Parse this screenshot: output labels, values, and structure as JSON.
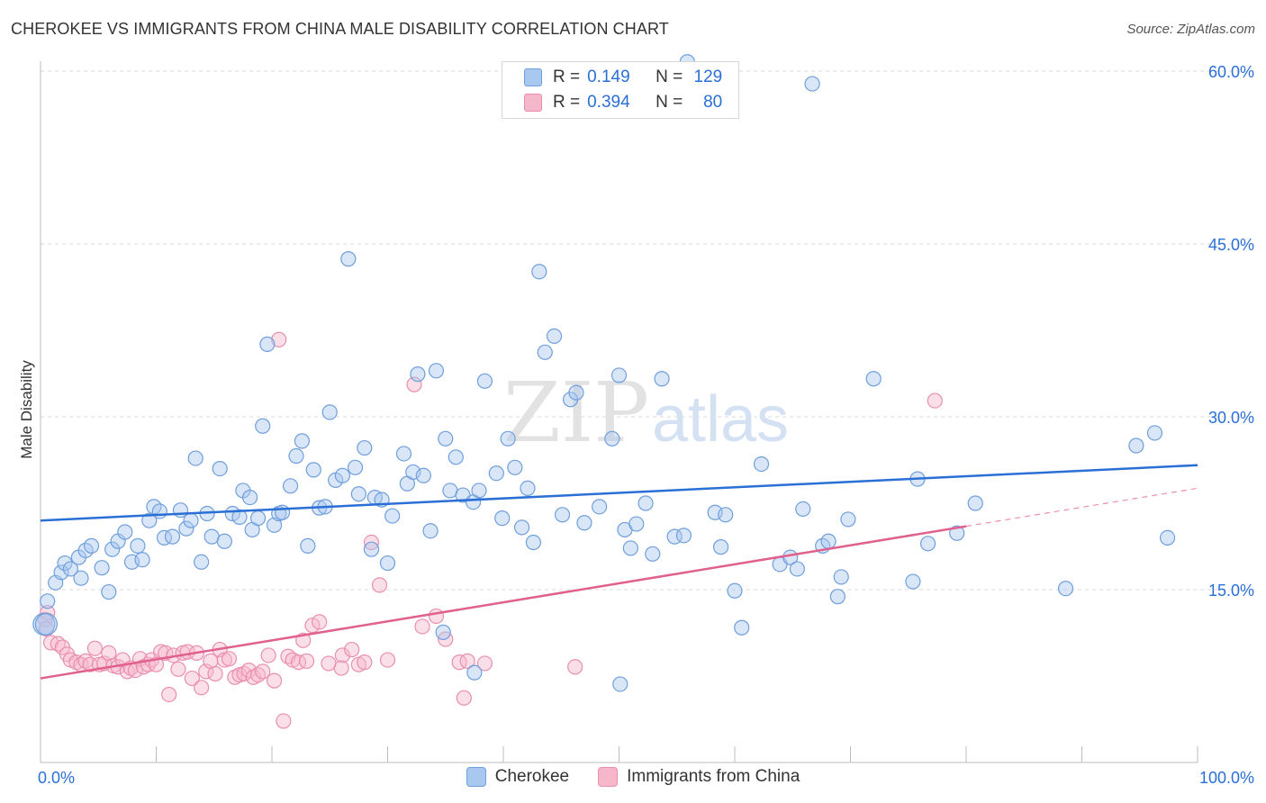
{
  "title": "CHEROKEE VS IMMIGRANTS FROM CHINA MALE DISABILITY CORRELATION CHART",
  "source": "Source: ZipAtlas.com",
  "watermark": {
    "zip": "ZIP",
    "atlas": "atlas"
  },
  "colors": {
    "blue": "#2a6fd6",
    "blue_fill": "#a9c8f0",
    "blue_stroke": "#6f9fdc",
    "pink": "#e0608e",
    "pink_fill": "#f6b7cb",
    "pink_stroke": "#ea8eaf",
    "grid": "#d9d9d9",
    "tick_label": "#2a6fd6"
  },
  "legend": {
    "rows": [
      {
        "r_label": "R =",
        "r_value": "0.149",
        "n_label": "N =",
        "n_value": "129"
      },
      {
        "r_label": "R =",
        "r_value": "0.394",
        "n_label": "N =",
        "n_value": "80"
      }
    ]
  },
  "bottom_legend": [
    "Cherokee",
    "Immigrants from China"
  ],
  "chart_data": {
    "type": "scatter",
    "title": "CHEROKEE VS IMMIGRANTS FROM CHINA MALE DISABILITY CORRELATION CHART",
    "xlabel": "",
    "ylabel": "Male Disability",
    "xlim": [
      0,
      100
    ],
    "ylim": [
      0,
      60
    ],
    "x_tick_labels": [
      "0.0%",
      "100.0%"
    ],
    "y_ticks": [
      15,
      30,
      45,
      60
    ],
    "y_tick_labels": [
      "15.0%",
      "30.0%",
      "45.0%",
      "60.0%"
    ],
    "grid": "horizontal dashed",
    "legend_position": "top-center",
    "series": [
      {
        "name": "Cherokee",
        "r": 0.149,
        "n": 129,
        "trend": {
          "x": [
            0,
            100
          ],
          "y": [
            21.0,
            25.8
          ]
        },
        "points": [
          [
            0.3,
            12.0
          ],
          [
            0.5,
            12.0
          ],
          [
            0.6,
            14.0
          ],
          [
            1.3,
            15.6
          ],
          [
            1.8,
            16.5
          ],
          [
            2.1,
            17.3
          ],
          [
            2.6,
            16.8
          ],
          [
            3.3,
            17.8
          ],
          [
            3.5,
            16.0
          ],
          [
            3.9,
            18.4
          ],
          [
            4.4,
            18.8
          ],
          [
            5.3,
            16.9
          ],
          [
            5.9,
            14.8
          ],
          [
            6.2,
            18.5
          ],
          [
            6.7,
            19.2
          ],
          [
            7.3,
            20.0
          ],
          [
            7.9,
            17.4
          ],
          [
            8.4,
            18.8
          ],
          [
            8.8,
            17.6
          ],
          [
            9.4,
            21.0
          ],
          [
            9.8,
            22.2
          ],
          [
            10.3,
            21.8
          ],
          [
            10.7,
            19.5
          ],
          [
            11.4,
            19.6
          ],
          [
            12.1,
            21.9
          ],
          [
            12.6,
            20.3
          ],
          [
            13.0,
            21.0
          ],
          [
            13.4,
            26.4
          ],
          [
            13.9,
            17.4
          ],
          [
            14.4,
            21.6
          ],
          [
            14.8,
            19.6
          ],
          [
            15.5,
            25.5
          ],
          [
            15.9,
            19.2
          ],
          [
            16.6,
            21.6
          ],
          [
            17.2,
            21.3
          ],
          [
            17.5,
            23.6
          ],
          [
            18.1,
            23.0
          ],
          [
            18.3,
            20.2
          ],
          [
            18.8,
            21.2
          ],
          [
            19.2,
            29.2
          ],
          [
            19.6,
            36.3
          ],
          [
            20.2,
            20.6
          ],
          [
            20.6,
            21.6
          ],
          [
            20.9,
            21.7
          ],
          [
            21.6,
            24.0
          ],
          [
            22.1,
            26.6
          ],
          [
            22.6,
            27.9
          ],
          [
            23.1,
            18.8
          ],
          [
            23.6,
            25.4
          ],
          [
            24.1,
            22.1
          ],
          [
            24.6,
            22.2
          ],
          [
            25.0,
            30.4
          ],
          [
            25.5,
            24.5
          ],
          [
            26.1,
            24.9
          ],
          [
            26.6,
            43.7
          ],
          [
            27.2,
            25.6
          ],
          [
            27.5,
            23.3
          ],
          [
            28.0,
            27.3
          ],
          [
            28.6,
            18.5
          ],
          [
            28.9,
            23.0
          ],
          [
            29.5,
            22.8
          ],
          [
            30.0,
            17.3
          ],
          [
            30.4,
            21.4
          ],
          [
            31.4,
            26.8
          ],
          [
            31.7,
            24.2
          ],
          [
            32.2,
            25.2
          ],
          [
            32.6,
            33.7
          ],
          [
            33.1,
            24.9
          ],
          [
            33.7,
            20.1
          ],
          [
            34.2,
            34.0
          ],
          [
            35.0,
            28.1
          ],
          [
            35.4,
            23.6
          ],
          [
            35.9,
            26.5
          ],
          [
            36.5,
            23.2
          ],
          [
            37.4,
            22.6
          ],
          [
            37.9,
            23.6
          ],
          [
            38.4,
            33.1
          ],
          [
            39.4,
            25.1
          ],
          [
            39.9,
            21.2
          ],
          [
            40.4,
            28.1
          ],
          [
            41.0,
            25.6
          ],
          [
            41.6,
            20.4
          ],
          [
            42.1,
            23.8
          ],
          [
            42.6,
            19.1
          ],
          [
            43.1,
            42.6
          ],
          [
            43.6,
            35.6
          ],
          [
            44.4,
            37.0
          ],
          [
            45.1,
            21.5
          ],
          [
            45.8,
            31.5
          ],
          [
            46.3,
            32.1
          ],
          [
            47.0,
            20.8
          ],
          [
            48.3,
            22.2
          ],
          [
            49.4,
            28.1
          ],
          [
            50.0,
            33.6
          ],
          [
            50.5,
            20.2
          ],
          [
            51.0,
            18.6
          ],
          [
            51.5,
            20.7
          ],
          [
            52.3,
            22.5
          ],
          [
            52.9,
            18.1
          ],
          [
            53.7,
            33.3
          ],
          [
            54.8,
            19.6
          ],
          [
            55.6,
            19.7
          ],
          [
            55.9,
            60.8
          ],
          [
            58.3,
            21.7
          ],
          [
            58.8,
            18.7
          ],
          [
            59.2,
            21.5
          ],
          [
            60.0,
            14.9
          ],
          [
            60.6,
            11.7
          ],
          [
            62.3,
            25.9
          ],
          [
            63.9,
            17.2
          ],
          [
            64.8,
            17.8
          ],
          [
            65.4,
            16.8
          ],
          [
            65.9,
            22.0
          ],
          [
            66.7,
            58.9
          ],
          [
            67.6,
            18.8
          ],
          [
            68.1,
            19.2
          ],
          [
            68.9,
            14.4
          ],
          [
            69.2,
            16.1
          ],
          [
            69.8,
            21.1
          ],
          [
            72.0,
            33.3
          ],
          [
            75.4,
            15.7
          ],
          [
            75.8,
            24.6
          ],
          [
            76.7,
            19.0
          ],
          [
            79.2,
            19.9
          ],
          [
            80.8,
            22.5
          ],
          [
            88.6,
            15.1
          ],
          [
            94.7,
            27.5
          ],
          [
            96.3,
            28.6
          ],
          [
            97.4,
            19.5
          ],
          [
            37.5,
            7.8
          ],
          [
            50.1,
            6.8
          ],
          [
            34.8,
            11.3
          ]
        ]
      },
      {
        "name": "Immigrants from China",
        "r": 0.394,
        "n": 80,
        "trend": {
          "x": [
            0,
            80
          ],
          "y": [
            7.3,
            20.5
          ]
        },
        "trend_dashed": {
          "x": [
            80,
            100
          ],
          "y": [
            20.5,
            23.8
          ]
        },
        "points": [
          [
            0.4,
            12.4
          ],
          [
            0.5,
            11.6
          ],
          [
            0.6,
            13.0
          ],
          [
            0.9,
            10.4
          ],
          [
            1.5,
            10.3
          ],
          [
            1.9,
            10.0
          ],
          [
            2.3,
            9.4
          ],
          [
            2.6,
            8.9
          ],
          [
            3.1,
            8.7
          ],
          [
            3.5,
            8.5
          ],
          [
            3.9,
            8.8
          ],
          [
            4.3,
            8.5
          ],
          [
            4.7,
            9.9
          ],
          [
            5.1,
            8.5
          ],
          [
            5.5,
            8.6
          ],
          [
            5.9,
            9.5
          ],
          [
            6.3,
            8.4
          ],
          [
            6.7,
            8.3
          ],
          [
            7.1,
            8.9
          ],
          [
            7.5,
            7.9
          ],
          [
            7.8,
            8.2
          ],
          [
            8.2,
            8.0
          ],
          [
            8.6,
            9.0
          ],
          [
            8.9,
            8.3
          ],
          [
            9.3,
            8.5
          ],
          [
            9.6,
            8.9
          ],
          [
            10.0,
            8.5
          ],
          [
            10.4,
            9.6
          ],
          [
            10.8,
            9.5
          ],
          [
            11.1,
            5.9
          ],
          [
            11.5,
            9.3
          ],
          [
            11.9,
            8.1
          ],
          [
            12.3,
            9.5
          ],
          [
            12.7,
            9.6
          ],
          [
            13.1,
            7.3
          ],
          [
            13.5,
            9.5
          ],
          [
            13.9,
            6.5
          ],
          [
            14.3,
            7.9
          ],
          [
            14.7,
            8.8
          ],
          [
            15.1,
            7.7
          ],
          [
            15.5,
            9.8
          ],
          [
            15.9,
            8.9
          ],
          [
            16.3,
            9.0
          ],
          [
            16.8,
            7.4
          ],
          [
            17.2,
            7.6
          ],
          [
            17.6,
            7.7
          ],
          [
            18.0,
            8.0
          ],
          [
            18.4,
            7.4
          ],
          [
            18.8,
            7.6
          ],
          [
            19.2,
            7.9
          ],
          [
            19.7,
            9.3
          ],
          [
            20.6,
            36.7
          ],
          [
            21.0,
            3.6
          ],
          [
            21.4,
            9.2
          ],
          [
            21.8,
            8.9
          ],
          [
            22.3,
            8.7
          ],
          [
            22.7,
            10.6
          ],
          [
            23.0,
            8.8
          ],
          [
            23.5,
            11.9
          ],
          [
            24.1,
            12.2
          ],
          [
            26.1,
            9.3
          ],
          [
            26.9,
            9.8
          ],
          [
            28.6,
            19.1
          ],
          [
            29.3,
            15.4
          ],
          [
            30.0,
            8.9
          ],
          [
            32.3,
            32.8
          ],
          [
            33.0,
            11.8
          ],
          [
            34.2,
            12.7
          ],
          [
            35.0,
            10.7
          ],
          [
            36.2,
            8.7
          ],
          [
            36.6,
            5.6
          ],
          [
            36.9,
            8.8
          ],
          [
            38.4,
            8.6
          ],
          [
            46.2,
            8.3
          ],
          [
            77.3,
            31.4
          ],
          [
            26.0,
            8.2
          ],
          [
            27.5,
            8.5
          ],
          [
            28.0,
            8.7
          ],
          [
            24.9,
            8.6
          ],
          [
            20.2,
            7.1
          ]
        ]
      }
    ]
  }
}
